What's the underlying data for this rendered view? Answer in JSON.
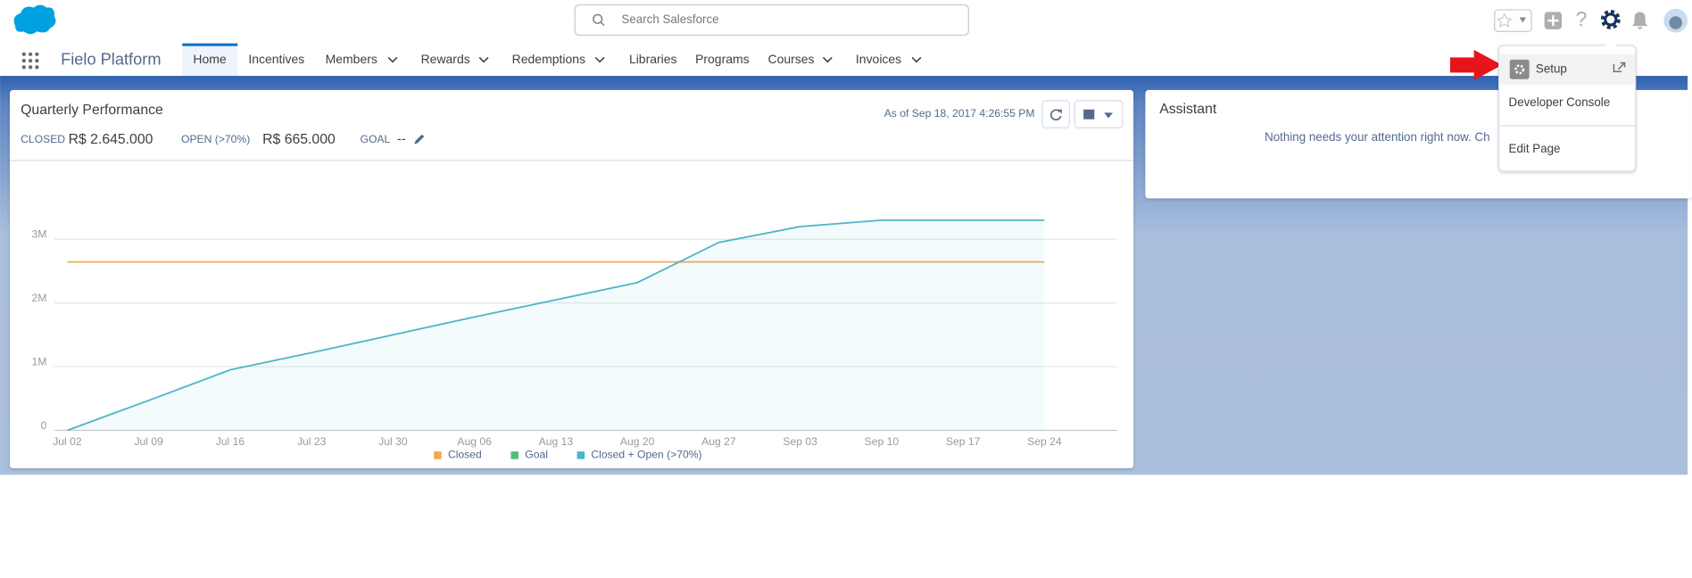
{
  "header": {
    "search_placeholder": "Search Salesforce"
  },
  "nav": {
    "app_name": "Fielo Platform",
    "items": [
      "Home",
      "Incentives",
      "Members",
      "Rewards",
      "Redemptions",
      "Libraries",
      "Programs",
      "Courses",
      "Invoices"
    ]
  },
  "card": {
    "title": "Quarterly Performance",
    "closed_label": "CLOSED",
    "closed_value": "R$ 2.645.000",
    "open_label": "OPEN (>70%)",
    "open_value": "R$ 665.000",
    "goal_label": "GOAL",
    "goal_value": "--",
    "as_of": "As of Sep 18, 2017 4:26:55 PM",
    "chart_data": {
      "type": "line",
      "categories": [
        "Jul 02",
        "Jul 09",
        "Jul 16",
        "Jul 23",
        "Jul 30",
        "Aug 06",
        "Aug 13",
        "Aug 20",
        "Aug 27",
        "Sep 03",
        "Sep 10",
        "Sep 17",
        "Sep 24"
      ],
      "series": [
        {
          "name": "Closed",
          "color": "#f4a94c",
          "values": [
            2645000,
            2645000,
            2645000,
            2645000,
            2645000,
            2645000,
            2645000,
            2645000,
            2645000,
            2645000,
            2645000,
            2645000,
            2645000
          ]
        },
        {
          "name": "Goal",
          "color": "#4bc076",
          "values": [
            null,
            null,
            null,
            null,
            null,
            null,
            null,
            null,
            null,
            null,
            null,
            null,
            null
          ]
        },
        {
          "name": "Closed + Open (>70%)",
          "color": "#4bb6c9",
          "values": [
            0,
            470000,
            950000,
            1220000,
            1500000,
            1780000,
            2050000,
            2320000,
            2950000,
            3200000,
            3300000,
            3300000,
            3300000
          ]
        }
      ],
      "ylim": [
        0,
        4000000
      ],
      "yticks": [
        0,
        {
          "value": 1000000,
          "label": "1M"
        },
        {
          "value": 2000000,
          "label": "2M"
        },
        {
          "value": 3000000,
          "label": "3M"
        }
      ],
      "grid": true
    }
  },
  "assistant": {
    "title": "Assistant",
    "message": "Nothing needs your attention right now. Ch"
  },
  "setup_menu": {
    "items": [
      "Setup",
      "Developer Console",
      "Edit Page"
    ]
  }
}
